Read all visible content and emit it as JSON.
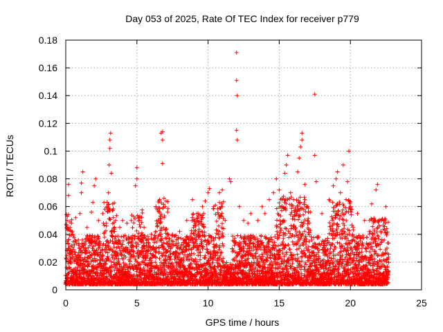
{
  "chart_data": {
    "type": "scatter",
    "title": "Day 053 of 2025, Rate Of TEC Index for receiver p779",
    "xlabel": "GPS time / hours",
    "ylabel": "ROTI / TECUs",
    "xlim": [
      0,
      25
    ],
    "ylim": [
      0,
      0.18
    ],
    "xticks": [
      "0",
      "5",
      "10",
      "15",
      "20",
      "25"
    ],
    "yticks": [
      "0",
      "0.02",
      "0.04",
      "0.06",
      "0.08",
      "0.1",
      "0.12",
      "0.14",
      "0.16",
      "0.18"
    ],
    "grid": true,
    "marker": "+",
    "color": "#ff0000",
    "data_time_range_hours": [
      0,
      22.7
    ],
    "series": [
      {
        "name": "ROTI",
        "points": [
          [
            0.1,
            0.035
          ],
          [
            0.1,
            0.05
          ],
          [
            0.2,
            0.068
          ],
          [
            0.2,
            0.076
          ],
          [
            0.3,
            0.045
          ],
          [
            0.5,
            0.04
          ],
          [
            0.7,
            0.052
          ],
          [
            1.0,
            0.055
          ],
          [
            1.1,
            0.07
          ],
          [
            1.1,
            0.077
          ],
          [
            1.2,
            0.085
          ],
          [
            1.5,
            0.045
          ],
          [
            1.8,
            0.056
          ],
          [
            1.9,
            0.063
          ],
          [
            2.0,
            0.075
          ],
          [
            2.1,
            0.08
          ],
          [
            2.3,
            0.05
          ],
          [
            2.6,
            0.055
          ],
          [
            2.9,
            0.06
          ],
          [
            3.0,
            0.07
          ],
          [
            3.05,
            0.09
          ],
          [
            3.1,
            0.102
          ],
          [
            3.1,
            0.108
          ],
          [
            3.15,
            0.113
          ],
          [
            3.2,
            0.084
          ],
          [
            3.3,
            0.062
          ],
          [
            3.5,
            0.05
          ],
          [
            3.8,
            0.045
          ],
          [
            4.0,
            0.05
          ],
          [
            4.3,
            0.048
          ],
          [
            4.6,
            0.05
          ],
          [
            4.9,
            0.075
          ],
          [
            5.0,
            0.08
          ],
          [
            5.0,
            0.088
          ],
          [
            5.2,
            0.05
          ],
          [
            5.5,
            0.045
          ],
          [
            6.0,
            0.04
          ],
          [
            6.5,
            0.05
          ],
          [
            6.6,
            0.065
          ],
          [
            6.7,
            0.113
          ],
          [
            6.8,
            0.114
          ],
          [
            6.8,
            0.108
          ],
          [
            6.8,
            0.091
          ],
          [
            6.9,
            0.066
          ],
          [
            7.0,
            0.06
          ],
          [
            7.5,
            0.04
          ],
          [
            8.0,
            0.042
          ],
          [
            8.5,
            0.05
          ],
          [
            8.9,
            0.065
          ],
          [
            9.3,
            0.055
          ],
          [
            9.6,
            0.06
          ],
          [
            9.8,
            0.064
          ],
          [
            10.0,
            0.07
          ],
          [
            10.1,
            0.073
          ],
          [
            10.4,
            0.06
          ],
          [
            10.8,
            0.07
          ],
          [
            11.0,
            0.072
          ],
          [
            11.0,
            0.06
          ],
          [
            11.2,
            0.05
          ],
          [
            11.5,
            0.08
          ],
          [
            11.6,
            0.078
          ],
          [
            12.0,
            0.171
          ],
          [
            12.0,
            0.151
          ],
          [
            12.05,
            0.14
          ],
          [
            12.0,
            0.115
          ],
          [
            12.05,
            0.108
          ],
          [
            12.2,
            0.06
          ],
          [
            12.5,
            0.05
          ],
          [
            12.8,
            0.048
          ],
          [
            13.0,
            0.055
          ],
          [
            13.5,
            0.05
          ],
          [
            13.8,
            0.06
          ],
          [
            14.0,
            0.055
          ],
          [
            14.3,
            0.065
          ],
          [
            14.6,
            0.07
          ],
          [
            14.8,
            0.08
          ],
          [
            15.0,
            0.072
          ],
          [
            15.2,
            0.065
          ],
          [
            15.4,
            0.084
          ],
          [
            15.5,
            0.09
          ],
          [
            15.6,
            0.097
          ],
          [
            15.8,
            0.07
          ],
          [
            16.0,
            0.065
          ],
          [
            16.3,
            0.085
          ],
          [
            16.4,
            0.095
          ],
          [
            16.5,
            0.103
          ],
          [
            16.6,
            0.108
          ],
          [
            16.6,
            0.113
          ],
          [
            16.8,
            0.076
          ],
          [
            16.8,
            0.065
          ],
          [
            17.0,
            0.06
          ],
          [
            17.5,
            0.097
          ],
          [
            17.6,
            0.078
          ],
          [
            17.5,
            0.141
          ],
          [
            18.0,
            0.055
          ],
          [
            18.5,
            0.065
          ],
          [
            18.8,
            0.075
          ],
          [
            19.0,
            0.08
          ],
          [
            19.1,
            0.085
          ],
          [
            19.3,
            0.07
          ],
          [
            19.5,
            0.09
          ],
          [
            19.7,
            0.065
          ],
          [
            19.8,
            0.078
          ],
          [
            19.9,
            0.1
          ],
          [
            20.0,
            0.06
          ],
          [
            20.5,
            0.055
          ],
          [
            21.0,
            0.05
          ],
          [
            21.5,
            0.062
          ],
          [
            21.8,
            0.072
          ],
          [
            21.9,
            0.076
          ],
          [
            22.2,
            0.05
          ],
          [
            22.5,
            0.06
          ]
        ]
      }
    ]
  }
}
